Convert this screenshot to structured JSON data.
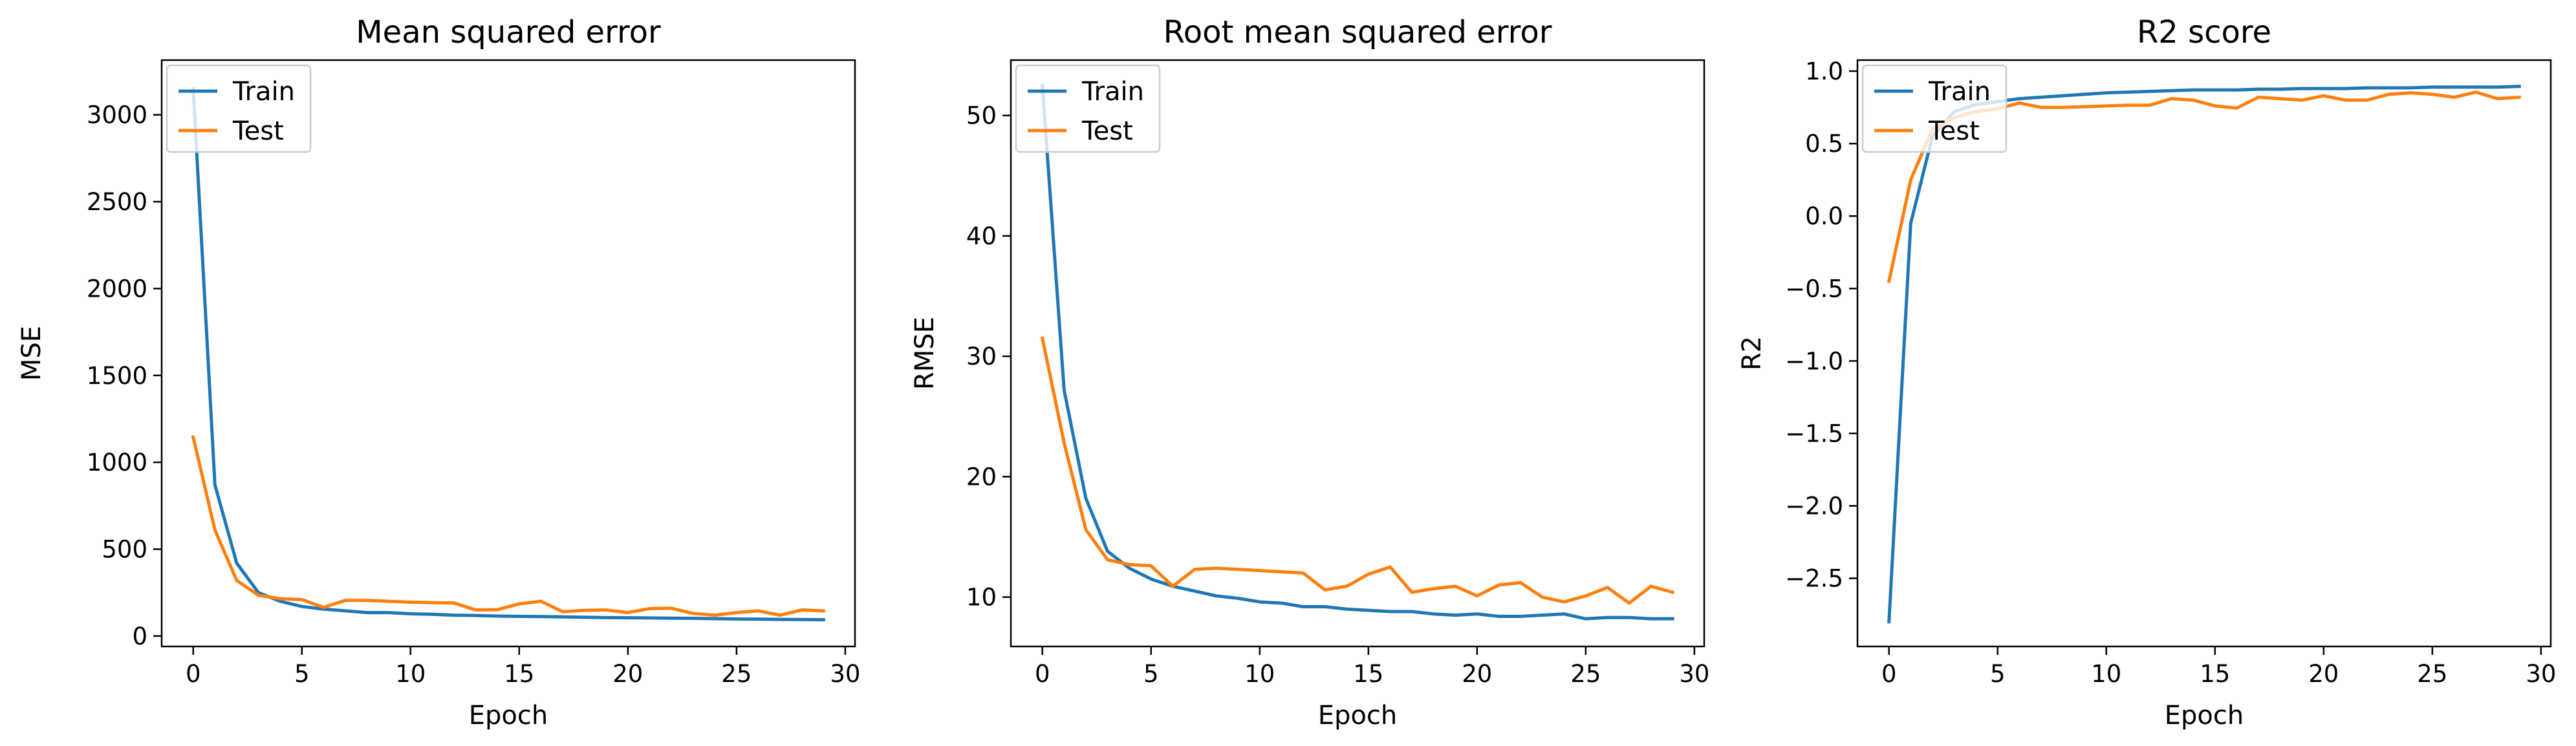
{
  "colors": {
    "train": "#1f77b4",
    "test": "#ff7f0e",
    "axis": "#000000",
    "legend_border": "#cccccc"
  },
  "chart_data": [
    {
      "type": "line",
      "title": "Mean squared error",
      "xlabel": "Epoch",
      "ylabel": "MSE",
      "xlim": [
        -1.45,
        30.45
      ],
      "ylim": [
        -60,
        3315
      ],
      "xticks": [
        0,
        5,
        10,
        15,
        20,
        25,
        30
      ],
      "yticks": [
        0,
        500,
        1000,
        1500,
        2000,
        2500,
        3000
      ],
      "ytick_labels": [
        "0",
        "500",
        "1000",
        "1500",
        "2000",
        "2500",
        "3000"
      ],
      "legend": "upper left",
      "x": [
        0,
        1,
        2,
        3,
        4,
        5,
        6,
        7,
        8,
        9,
        10,
        11,
        12,
        13,
        14,
        15,
        16,
        17,
        18,
        19,
        20,
        21,
        22,
        23,
        24,
        25,
        26,
        27,
        28,
        29
      ],
      "series": [
        {
          "name": "Train",
          "color_key": "train",
          "values": [
            3150,
            870,
            420,
            250,
            200,
            170,
            155,
            145,
            135,
            135,
            128,
            125,
            120,
            118,
            115,
            113,
            112,
            110,
            108,
            106,
            105,
            104,
            103,
            102,
            100,
            98,
            97,
            96,
            95,
            94
          ]
        },
        {
          "name": "Test",
          "color_key": "test",
          "values": [
            1145,
            610,
            320,
            235,
            215,
            210,
            165,
            205,
            205,
            200,
            195,
            192,
            190,
            150,
            152,
            185,
            200,
            140,
            148,
            150,
            135,
            158,
            160,
            130,
            120,
            135,
            145,
            120,
            150,
            145
          ]
        }
      ]
    },
    {
      "type": "line",
      "title": "Root mean squared error",
      "xlabel": "Epoch",
      "ylabel": "RMSE",
      "xlim": [
        -1.45,
        30.45
      ],
      "ylim": [
        5.9,
        54.6
      ],
      "xticks": [
        0,
        5,
        10,
        15,
        20,
        25,
        30
      ],
      "yticks": [
        10,
        20,
        30,
        40,
        50
      ],
      "ytick_labels": [
        "10",
        "20",
        "30",
        "40",
        "50"
      ],
      "legend": "upper left",
      "x": [
        0,
        1,
        2,
        3,
        4,
        5,
        6,
        7,
        8,
        9,
        10,
        11,
        12,
        13,
        14,
        15,
        16,
        17,
        18,
        19,
        20,
        21,
        22,
        23,
        24,
        25,
        26,
        27,
        28,
        29
      ],
      "series": [
        {
          "name": "Train",
          "color_key": "train",
          "values": [
            52.5,
            27.2,
            18.2,
            13.8,
            12.4,
            11.5,
            10.9,
            10.5,
            10.1,
            9.9,
            9.6,
            9.5,
            9.2,
            9.2,
            9.0,
            8.9,
            8.8,
            8.8,
            8.6,
            8.5,
            8.6,
            8.4,
            8.4,
            8.5,
            8.6,
            8.2,
            8.3,
            8.3,
            8.2,
            8.2
          ]
        },
        {
          "name": "Test",
          "color_key": "test",
          "values": [
            31.5,
            22.8,
            15.6,
            13.1,
            12.7,
            12.6,
            10.9,
            12.3,
            12.4,
            12.3,
            12.2,
            12.1,
            12.0,
            10.6,
            10.9,
            11.9,
            12.5,
            10.4,
            10.7,
            10.9,
            10.1,
            11.0,
            11.2,
            10.0,
            9.6,
            10.1,
            10.8,
            9.5,
            10.9,
            10.4
          ]
        }
      ]
    },
    {
      "type": "line",
      "title": "R2 score",
      "xlabel": "Epoch",
      "ylabel": "R2",
      "xlim": [
        -1.45,
        30.45
      ],
      "ylim": [
        -2.97,
        1.076
      ],
      "xticks": [
        0,
        5,
        10,
        15,
        20,
        25,
        30
      ],
      "yticks": [
        -2.5,
        -2.0,
        -1.5,
        -1.0,
        -0.5,
        0.0,
        0.5,
        1.0
      ],
      "ytick_labels": [
        "−2.5",
        "−2.0",
        "−1.5",
        "−1.0",
        "−0.5",
        "0.0",
        "0.5",
        "1.0"
      ],
      "legend": "upper left",
      "x": [
        0,
        1,
        2,
        3,
        4,
        5,
        6,
        7,
        8,
        9,
        10,
        11,
        12,
        13,
        14,
        15,
        16,
        17,
        18,
        19,
        20,
        21,
        22,
        23,
        24,
        25,
        26,
        27,
        28,
        29
      ],
      "series": [
        {
          "name": "Train",
          "color_key": "train",
          "values": [
            -2.8,
            -0.05,
            0.55,
            0.72,
            0.77,
            0.79,
            0.81,
            0.82,
            0.83,
            0.84,
            0.85,
            0.855,
            0.86,
            0.865,
            0.87,
            0.87,
            0.87,
            0.875,
            0.875,
            0.88,
            0.88,
            0.88,
            0.885,
            0.885,
            0.885,
            0.89,
            0.89,
            0.89,
            0.89,
            0.895
          ]
        },
        {
          "name": "Test",
          "color_key": "test",
          "values": [
            -0.45,
            0.25,
            0.6,
            0.68,
            0.72,
            0.74,
            0.78,
            0.75,
            0.75,
            0.755,
            0.76,
            0.765,
            0.765,
            0.81,
            0.8,
            0.76,
            0.745,
            0.82,
            0.81,
            0.8,
            0.83,
            0.8,
            0.8,
            0.84,
            0.85,
            0.84,
            0.82,
            0.855,
            0.81,
            0.82
          ]
        }
      ]
    }
  ]
}
